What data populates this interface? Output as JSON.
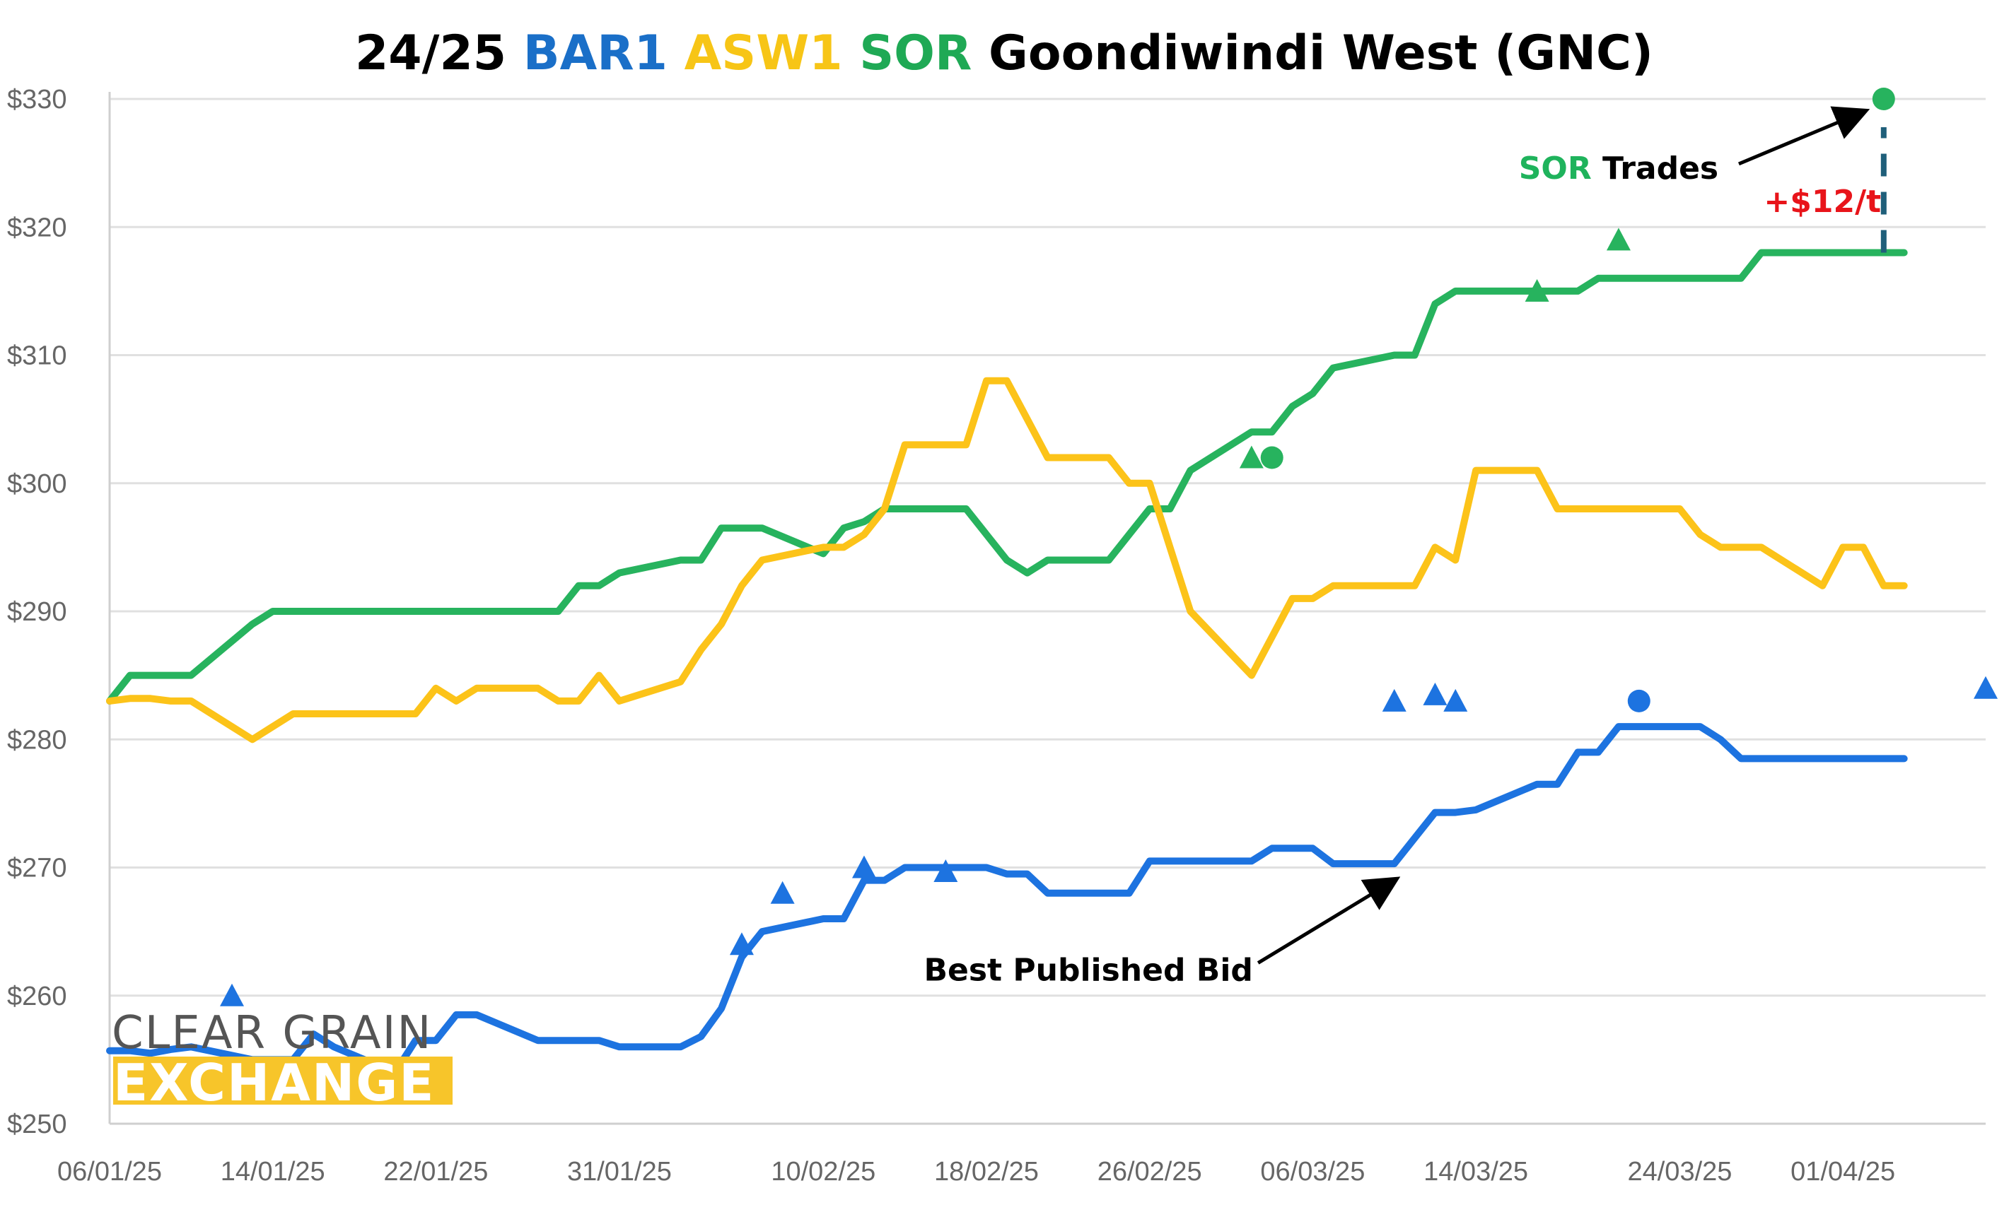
{
  "chart_data": {
    "type": "line",
    "title": {
      "parts": [
        {
          "text": "24/25 ",
          "color": "#000000"
        },
        {
          "text": "BAR1",
          "color": "#1a6fc8"
        },
        {
          "text": " ",
          "color": "#000000"
        },
        {
          "text": "ASW1",
          "color": "#f7c516"
        },
        {
          "text": " ",
          "color": "#000000"
        },
        {
          "text": "SOR",
          "color": "#1fa955"
        },
        {
          "text": " Goondiwindi West (GNC)",
          "color": "#000000"
        }
      ]
    },
    "y_range": [
      250,
      330
    ],
    "y_ticks": [
      250,
      260,
      270,
      280,
      290,
      300,
      310,
      320,
      330
    ],
    "y_tick_labels": [
      "$250",
      "$260",
      "$270",
      "$280",
      "$290",
      "$300",
      "$310",
      "$320",
      "$330"
    ],
    "x_range": [
      "2025-01-06",
      "2025-04-08"
    ],
    "x_ticks": [
      "2025-01-06",
      "2025-01-14",
      "2025-01-22",
      "2025-01-31",
      "2025-02-10",
      "2025-02-18",
      "2025-02-26",
      "2025-03-06",
      "2025-03-14",
      "2025-03-24",
      "2025-04-01"
    ],
    "x_tick_labels": [
      "06/01/25",
      "14/01/25",
      "22/01/25",
      "31/01/25",
      "10/02/25",
      "18/02/25",
      "26/02/25",
      "06/03/25",
      "14/03/25",
      "24/03/25",
      "01/04/25"
    ],
    "grid": true,
    "series": [
      {
        "name": "SOR",
        "color": "#27b35e",
        "x": [
          "2025-01-06",
          "2025-01-07",
          "2025-01-08",
          "2025-01-09",
          "2025-01-10",
          "2025-01-13",
          "2025-01-14",
          "2025-01-15",
          "2025-01-16",
          "2025-01-17",
          "2025-01-20",
          "2025-01-21",
          "2025-01-22",
          "2025-01-23",
          "2025-01-24",
          "2025-01-27",
          "2025-01-28",
          "2025-01-29",
          "2025-01-30",
          "2025-01-31",
          "2025-02-03",
          "2025-02-04",
          "2025-02-05",
          "2025-02-06",
          "2025-02-07",
          "2025-02-10",
          "2025-02-11",
          "2025-02-12",
          "2025-02-13",
          "2025-02-14",
          "2025-02-17",
          "2025-02-18",
          "2025-02-19",
          "2025-02-20",
          "2025-02-21",
          "2025-02-24",
          "2025-02-25",
          "2025-02-26",
          "2025-02-27",
          "2025-02-28",
          "2025-03-03",
          "2025-03-04",
          "2025-03-05",
          "2025-03-06",
          "2025-03-07",
          "2025-03-10",
          "2025-03-11",
          "2025-03-12",
          "2025-03-13",
          "2025-03-14",
          "2025-03-17",
          "2025-03-18",
          "2025-03-19",
          "2025-03-20",
          "2025-03-21",
          "2025-03-24",
          "2025-03-25",
          "2025-03-26",
          "2025-03-27",
          "2025-03-28",
          "2025-03-31",
          "2025-04-01",
          "2025-04-02",
          "2025-04-03",
          "2025-04-04"
        ],
        "y": [
          283,
          285,
          285,
          285,
          285,
          289,
          290,
          290,
          290,
          290,
          290,
          290,
          290,
          290,
          290,
          290,
          290,
          292,
          292,
          293,
          294,
          294,
          296.5,
          296.5,
          296.5,
          294.5,
          296.5,
          297,
          298,
          298,
          298,
          296,
          294,
          293,
          294,
          294,
          296,
          298,
          298,
          301,
          304,
          304,
          306,
          307,
          309,
          310,
          310,
          314,
          315,
          315,
          315,
          315,
          315,
          316,
          316,
          316,
          316,
          316,
          316,
          318,
          318,
          318,
          318,
          318,
          318
        ]
      },
      {
        "name": "ASW1",
        "color": "#fcc319",
        "x": [
          "2025-01-06",
          "2025-01-07",
          "2025-01-08",
          "2025-01-09",
          "2025-01-10",
          "2025-01-13",
          "2025-01-14",
          "2025-01-15",
          "2025-01-16",
          "2025-01-17",
          "2025-01-20",
          "2025-01-21",
          "2025-01-22",
          "2025-01-23",
          "2025-01-24",
          "2025-01-27",
          "2025-01-28",
          "2025-01-29",
          "2025-01-30",
          "2025-01-31",
          "2025-02-03",
          "2025-02-04",
          "2025-02-05",
          "2025-02-06",
          "2025-02-07",
          "2025-02-10",
          "2025-02-11",
          "2025-02-12",
          "2025-02-13",
          "2025-02-14",
          "2025-02-17",
          "2025-02-18",
          "2025-02-19",
          "2025-02-20",
          "2025-02-21",
          "2025-02-24",
          "2025-02-25",
          "2025-02-26",
          "2025-02-27",
          "2025-02-28",
          "2025-03-03",
          "2025-03-04",
          "2025-03-05",
          "2025-03-06",
          "2025-03-07",
          "2025-03-10",
          "2025-03-11",
          "2025-03-12",
          "2025-03-13",
          "2025-03-14",
          "2025-03-17",
          "2025-03-18",
          "2025-03-19",
          "2025-03-20",
          "2025-03-21",
          "2025-03-24",
          "2025-03-25",
          "2025-03-26",
          "2025-03-27",
          "2025-03-28",
          "2025-03-31",
          "2025-04-01",
          "2025-04-02",
          "2025-04-03",
          "2025-04-04"
        ],
        "y": [
          283,
          283.2,
          283.2,
          283,
          283,
          280,
          281,
          282,
          282,
          282,
          282,
          282,
          284,
          283,
          284,
          284,
          283,
          283,
          285,
          283,
          284.5,
          287,
          289,
          292,
          294,
          295,
          295,
          296,
          298,
          303,
          303,
          308,
          308,
          305,
          302,
          302,
          300,
          300,
          295,
          290,
          285,
          288,
          291,
          291,
          292,
          292,
          292,
          295,
          294,
          301,
          301,
          298,
          298,
          298,
          298,
          298,
          296,
          295,
          295,
          295,
          292,
          295,
          295,
          292,
          292
        ]
      },
      {
        "name": "BAR1",
        "color": "#1d73e0",
        "x": [
          "2025-01-06",
          "2025-01-07",
          "2025-01-08",
          "2025-01-09",
          "2025-01-10",
          "2025-01-13",
          "2025-01-14",
          "2025-01-15",
          "2025-01-16",
          "2025-01-17",
          "2025-01-20",
          "2025-01-21",
          "2025-01-22",
          "2025-01-23",
          "2025-01-24",
          "2025-01-27",
          "2025-01-28",
          "2025-01-29",
          "2025-01-30",
          "2025-01-31",
          "2025-02-03",
          "2025-02-04",
          "2025-02-05",
          "2025-02-06",
          "2025-02-07",
          "2025-02-10",
          "2025-02-11",
          "2025-02-12",
          "2025-02-13",
          "2025-02-14",
          "2025-02-17",
          "2025-02-18",
          "2025-02-19",
          "2025-02-20",
          "2025-02-21",
          "2025-02-24",
          "2025-02-25",
          "2025-02-26",
          "2025-02-27",
          "2025-02-28",
          "2025-03-03",
          "2025-03-04",
          "2025-03-05",
          "2025-03-06",
          "2025-03-07",
          "2025-03-10",
          "2025-03-11",
          "2025-03-12",
          "2025-03-13",
          "2025-03-14",
          "2025-03-17",
          "2025-03-18",
          "2025-03-19",
          "2025-03-20",
          "2025-03-21",
          "2025-03-24",
          "2025-03-25",
          "2025-03-26",
          "2025-03-27",
          "2025-03-28",
          "2025-03-31",
          "2025-04-01",
          "2025-04-02",
          "2025-04-03",
          "2025-04-04"
        ],
        "y": [
          255.7,
          255.7,
          255.5,
          255.8,
          256,
          255,
          255,
          255,
          257,
          256,
          254,
          256.5,
          256.5,
          258.5,
          258.5,
          256.5,
          256.5,
          256.5,
          256.5,
          256,
          256,
          256.8,
          259,
          263,
          265,
          266,
          266,
          269,
          269,
          270,
          270,
          270,
          269.5,
          269.5,
          268,
          268,
          268,
          270.5,
          270.5,
          270.5,
          270.5,
          271.5,
          271.5,
          271.5,
          270.3,
          270.3,
          272.3,
          274.3,
          274.3,
          274.5,
          276.5,
          276.5,
          279,
          279,
          281,
          281,
          281,
          280,
          278.5,
          278.5,
          278.5,
          278.5,
          278.5,
          278.5,
          278.5
        ]
      }
    ],
    "trade_markers": [
      {
        "series": "SOR",
        "shape": "triangle",
        "x": "2025-03-03",
        "y": 302
      },
      {
        "series": "SOR",
        "shape": "circle",
        "x": "2025-03-04",
        "y": 302
      },
      {
        "series": "SOR",
        "shape": "triangle",
        "x": "2025-03-17",
        "y": 315
      },
      {
        "series": "SOR",
        "shape": "triangle",
        "x": "2025-03-21",
        "y": 319
      },
      {
        "series": "SOR",
        "shape": "circle",
        "x": "2025-04-03",
        "y": 330
      },
      {
        "series": "BAR1",
        "shape": "triangle",
        "x": "2025-01-12",
        "y": 260
      },
      {
        "series": "BAR1",
        "shape": "triangle",
        "x": "2025-02-06",
        "y": 264
      },
      {
        "series": "BAR1",
        "shape": "triangle",
        "x": "2025-02-08",
        "y": 268
      },
      {
        "series": "BAR1",
        "shape": "triangle",
        "x": "2025-02-12",
        "y": 270
      },
      {
        "series": "BAR1",
        "shape": "triangle",
        "x": "2025-02-16",
        "y": 269.7
      },
      {
        "series": "BAR1",
        "shape": "triangle",
        "x": "2025-03-10",
        "y": 283
      },
      {
        "series": "BAR1",
        "shape": "triangle",
        "x": "2025-03-12",
        "y": 283.5
      },
      {
        "series": "BAR1",
        "shape": "triangle",
        "x": "2025-03-13",
        "y": 283
      },
      {
        "series": "BAR1",
        "shape": "circle",
        "x": "2025-03-22",
        "y": 283
      },
      {
        "series": "BAR1",
        "shape": "triangle",
        "x": "2025-04-08",
        "y": 284
      }
    ],
    "annotations": [
      {
        "parts": [
          {
            "text": "SOR",
            "color": "#1fb35c"
          },
          {
            "text": " Trades",
            "color": "#000000"
          }
        ],
        "x": "2025-03-21",
        "y": 324.6,
        "arrow_to": {
          "x": "2025-04-02",
          "y": 329
        }
      },
      {
        "parts": [
          {
            "text": "+$12/t",
            "color": "#e8141a"
          }
        ],
        "x": "2025-03-31",
        "y": 322
      },
      {
        "parts": [
          {
            "text": "Best Published Bid",
            "color": "#000000"
          }
        ],
        "x": "2025-02-23",
        "y": 262,
        "arrow_to": {
          "x": "2025-03-10",
          "y": 269
        }
      }
    ],
    "difference_marker": {
      "x": "2025-04-03",
      "from": 318,
      "to": 330,
      "color": "#1f5f7a"
    }
  },
  "logo": {
    "line1": "CLEAR GRAIN",
    "line2": "EXCHANGE",
    "line1_color": "#555555",
    "line2_color": "#f7c52a"
  }
}
